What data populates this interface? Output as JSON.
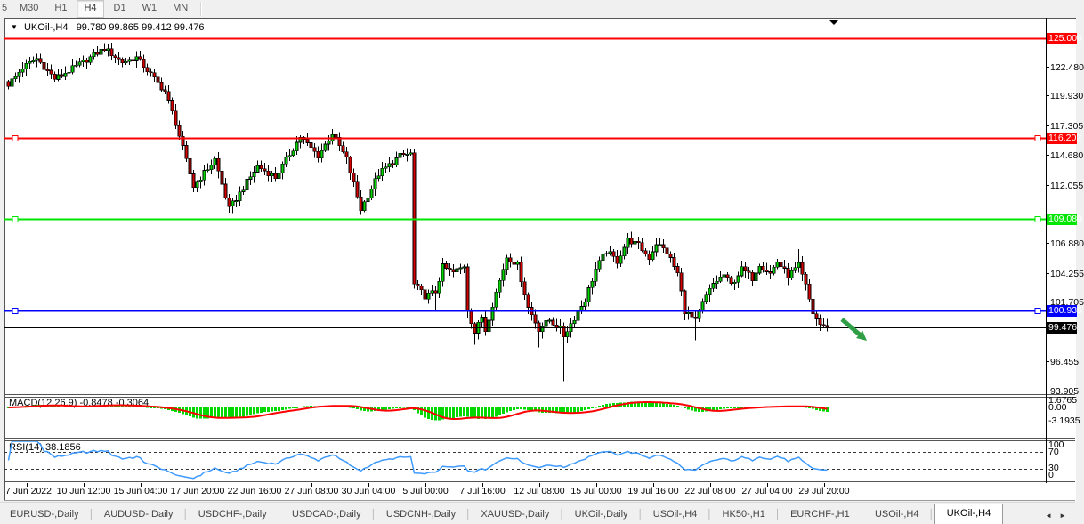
{
  "window": {
    "symbol": "UKOil-,H4",
    "ohlc": "99.780 99.865 99.412 99.476"
  },
  "toolbar": {
    "timeframes": [
      "5",
      "M30",
      "H1",
      "H4",
      "D1",
      "W1",
      "MN"
    ],
    "active": "H4"
  },
  "chart_data": {
    "type": "candlestick",
    "symbol": "UKOil-,H4",
    "timeframe": "H4",
    "current_bar": {
      "open": "99.780",
      "high": "99.865",
      "low": "99.412",
      "close": "99.476"
    },
    "bars": 231,
    "y_axis": {
      "ticks": [
        122.48,
        119.93,
        117.305,
        114.68,
        112.055,
        106.88,
        104.255,
        101.705,
        96.455,
        93.905
      ],
      "top_price": 126.8,
      "bottom_price": 93.55
    },
    "hlines": [
      {
        "price": 125.0,
        "label": "125.000",
        "color": "#ff0000",
        "width": 2,
        "end_markers": false
      },
      {
        "price": 116.202,
        "label": "116.202",
        "color": "#ff0000",
        "width": 2,
        "end_markers": true
      },
      {
        "price": 109.08,
        "label": "109.080",
        "color": "#00e600",
        "width": 2,
        "end_markers": true
      },
      {
        "price": 100.935,
        "label": "100.935",
        "color": "#0000ff",
        "width": 2,
        "end_markers": true
      },
      {
        "price": 99.476,
        "label": "99.476",
        "color": "#000000",
        "width": 1,
        "end_markers": false
      }
    ],
    "price_anchors": [
      [
        0,
        120.9
      ],
      [
        4,
        122.4
      ],
      [
        8,
        123.2
      ],
      [
        13,
        121.4
      ],
      [
        20,
        122.7
      ],
      [
        27,
        124.1
      ],
      [
        32,
        122.9
      ],
      [
        36,
        123.3
      ],
      [
        44,
        120.3
      ],
      [
        47,
        117.5
      ],
      [
        52,
        111.9
      ],
      [
        58,
        114.3
      ],
      [
        62,
        109.9
      ],
      [
        70,
        113.7
      ],
      [
        75,
        112.7
      ],
      [
        82,
        116.3
      ],
      [
        87,
        114.6
      ],
      [
        91,
        116.6
      ],
      [
        95,
        114.3
      ],
      [
        99,
        109.9
      ],
      [
        104,
        113.0
      ],
      [
        110,
        114.6
      ],
      [
        113,
        114.8
      ],
      [
        114,
        103.2
      ],
      [
        117,
        102.2
      ],
      [
        120,
        102.6
      ],
      [
        122,
        104.8
      ],
      [
        125,
        104.3
      ],
      [
        128,
        104.9
      ],
      [
        129,
        101.0
      ],
      [
        131,
        99.0
      ],
      [
        133,
        100.4
      ],
      [
        134,
        99.2
      ],
      [
        136,
        101.5
      ],
      [
        138,
        103.6
      ],
      [
        140,
        105.7
      ],
      [
        143,
        105.0
      ],
      [
        146,
        101.2
      ],
      [
        149,
        99.3
      ],
      [
        152,
        100.1
      ],
      [
        155,
        99.3
      ],
      [
        156,
        98.7
      ],
      [
        159,
        100.3
      ],
      [
        162,
        101.9
      ],
      [
        165,
        104.6
      ],
      [
        168,
        106.2
      ],
      [
        171,
        105.3
      ],
      [
        174,
        107.2
      ],
      [
        177,
        106.7
      ],
      [
        180,
        105.6
      ],
      [
        182,
        106.9
      ],
      [
        185,
        106.1
      ],
      [
        188,
        104.2
      ],
      [
        190,
        100.9
      ],
      [
        193,
        100.0
      ],
      [
        195,
        101.6
      ],
      [
        198,
        103.3
      ],
      [
        201,
        104.1
      ],
      [
        203,
        103.2
      ],
      [
        206,
        104.6
      ],
      [
        209,
        103.8
      ],
      [
        211,
        105.1
      ],
      [
        214,
        104.2
      ],
      [
        216,
        105.3
      ],
      [
        219,
        104.0
      ],
      [
        222,
        104.9
      ],
      [
        224,
        103.1
      ],
      [
        226,
        100.7
      ],
      [
        228,
        99.7
      ],
      [
        230,
        99.476
      ]
    ],
    "special_wicks": [
      {
        "i": 27,
        "high": 124.55
      },
      {
        "i": 120,
        "low": 100.9
      },
      {
        "i": 131,
        "low": 97.9
      },
      {
        "i": 149,
        "low": 97.7
      },
      {
        "i": 156,
        "low": 94.7
      },
      {
        "i": 193,
        "low": 98.3
      },
      {
        "i": 222,
        "high": 106.35
      }
    ],
    "x_axis": {
      "labels": [
        "7 Jun 2022",
        "10 Jun 12:00",
        "15 Jun 04:00",
        "17 Jun 20:00",
        "22 Jun 16:00",
        "27 Jun 08:00",
        "30 Jun 04:00",
        "5 Jul 00:00",
        "7 Jul 16:00",
        "12 Jul 08:00",
        "15 Jul 00:00",
        "19 Jul 16:00",
        "22 Jul 08:00",
        "27 Jul 04:00",
        "29 Jul 20:00"
      ]
    },
    "indicators": {
      "macd": {
        "label": "MACD(12,26,9) -0.8478 -0.3064",
        "params": [
          12,
          26,
          9
        ],
        "values": [
          -0.8478,
          -0.3064
        ],
        "axis_labels": [
          "1.6765",
          "0.00",
          "-3.1935"
        ],
        "histogram_color": "#00d800",
        "signal_color": "#ff0000"
      },
      "rsi": {
        "label": "RSI(14) 38.1856",
        "period": 14,
        "value": 38.1856,
        "levels": [
          100,
          70,
          30,
          0
        ],
        "dashed_levels": [
          70,
          30
        ],
        "line_color": "#3d9aff"
      }
    },
    "annotations": [
      {
        "type": "arrow-down-right",
        "color": "#2f9e44"
      },
      {
        "type": "chart-shift-marker",
        "color": "#000000"
      }
    ],
    "colors": {
      "up": "#00d800",
      "down": "#d60000",
      "wick": "#000000",
      "background": "#ffffff"
    }
  },
  "tabs": {
    "items": [
      "EURUSD-,Daily",
      "AUDUSD-,Daily",
      "USDCHF-,Daily",
      "USDCAD-,Daily",
      "USDCNH-,Daily",
      "XAUUSD-,Daily",
      "UKOil-,Daily",
      "USOil-,H4",
      "HK50-,H1",
      "EURCHF-,H1",
      "USOil-,H4",
      "UKOil-,H4"
    ],
    "active": "UKOil-,H4",
    "scroll_left": "◄",
    "scroll_right": "►"
  }
}
